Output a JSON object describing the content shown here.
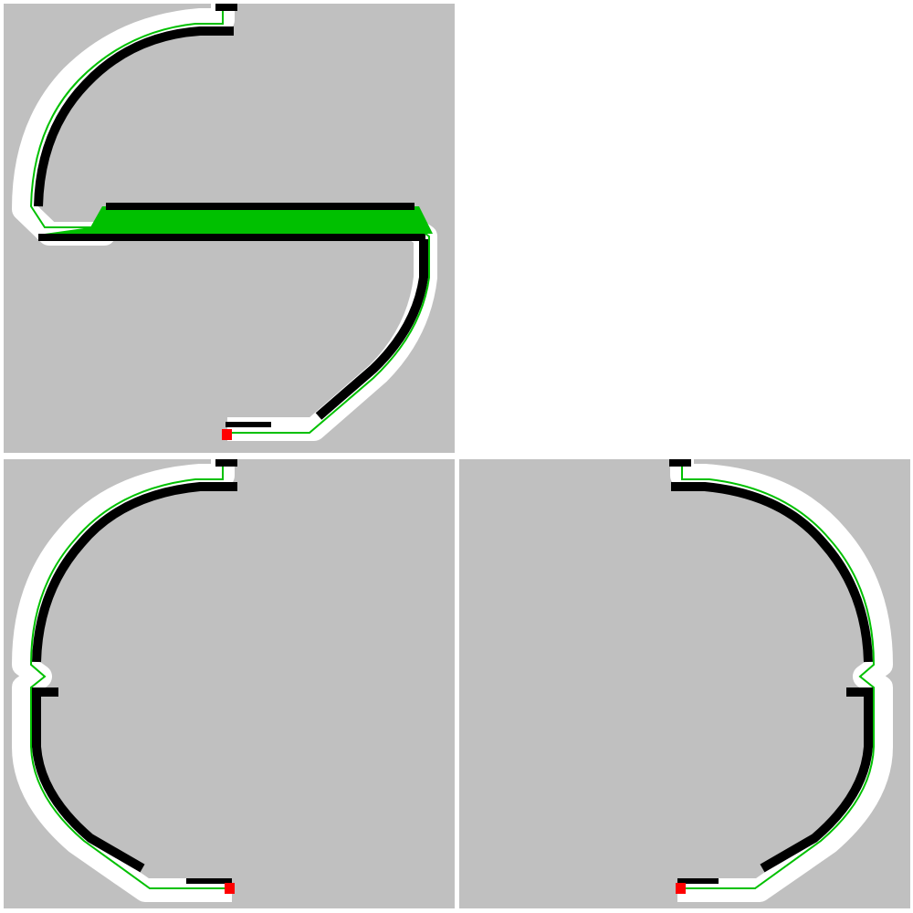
{
  "colors": {
    "panel_background": "#c0c0c0",
    "page_background": "#ffffff",
    "track_outline": "#ffffff",
    "track_fill": "#000000",
    "path_line": "#00c000",
    "endpoint_marker": "#ff0000"
  },
  "panels": [
    {
      "shape": "s-curve-track",
      "shape_icon": "s-curve-shape"
    },
    {
      "shape": "left-arc-track",
      "shape_icon": "left-arc-shape"
    },
    {
      "shape": "right-arc-track",
      "shape_icon": "right-arc-shape"
    }
  ]
}
